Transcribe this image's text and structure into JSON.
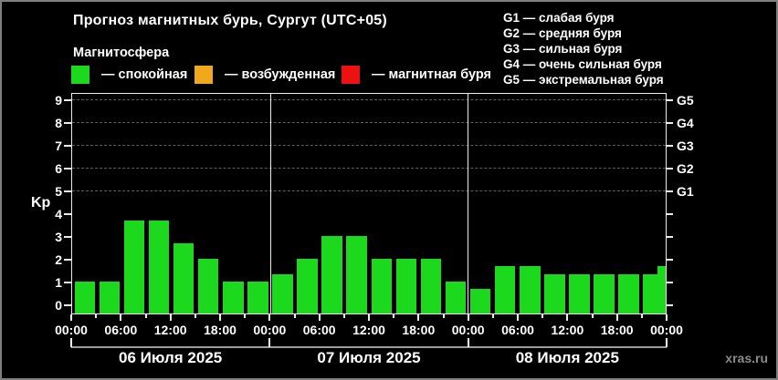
{
  "header": {
    "title": "Прогноз магнитных бурь, Сургут (UTC+05)",
    "subtitle": "Магнитосфера",
    "legend": [
      {
        "name": "calm",
        "label": "— спокойная",
        "color": "#1dd91d"
      },
      {
        "name": "excited",
        "label": "— возбужденная",
        "color": "#f0a81c"
      },
      {
        "name": "storm",
        "label": "— магнитная буря",
        "color": "#ee1111"
      }
    ]
  },
  "g_legend": [
    "G1 — слабая буря",
    "G2 — средняя буря",
    "G3 — сильная буря",
    "G4 — очень сильная буря",
    "G5 — экстремальная буря"
  ],
  "chart_data": {
    "type": "bar",
    "title": "Прогноз магнитных бурь, Сургут (UTC+05)",
    "ylabel": "Kp",
    "ylim": [
      0,
      9
    ],
    "y_ticks": [
      0,
      1,
      2,
      3,
      4,
      5,
      6,
      7,
      8,
      9
    ],
    "grid_levels_kp": [
      5,
      6,
      7,
      8,
      9
    ],
    "right_axis": [
      {
        "label": "G1",
        "kp": 5
      },
      {
        "label": "G2",
        "kp": 6
      },
      {
        "label": "G3",
        "kp": 7
      },
      {
        "label": "G4",
        "kp": 8
      },
      {
        "label": "G5",
        "kp": 9
      }
    ],
    "x_tick_labels": [
      "00:00",
      "06:00",
      "12:00",
      "18:00",
      "00:00",
      "06:00",
      "12:00",
      "18:00",
      "00:00",
      "06:00",
      "12:00",
      "18:00",
      "00:00"
    ],
    "interval_hours": 3,
    "bar_color": "#1dd91d",
    "grid_on": true,
    "legend_position": "top",
    "days": [
      {
        "date": "06 Июля 2025",
        "values": [
          1,
          1,
          3.67,
          3.67,
          2.67,
          2,
          1,
          1
        ]
      },
      {
        "date": "07 Июля 2025",
        "values": [
          1.33,
          2,
          3,
          3,
          2,
          2,
          2,
          1
        ]
      },
      {
        "date": "08 Июля 2025",
        "values": [
          0.67,
          1.67,
          1.67,
          1.33,
          1.33,
          1.33,
          1.33,
          1.33
        ]
      }
    ],
    "next_interval_first_value": 1.67
  },
  "footer": {
    "watermark": "xras.ru"
  }
}
